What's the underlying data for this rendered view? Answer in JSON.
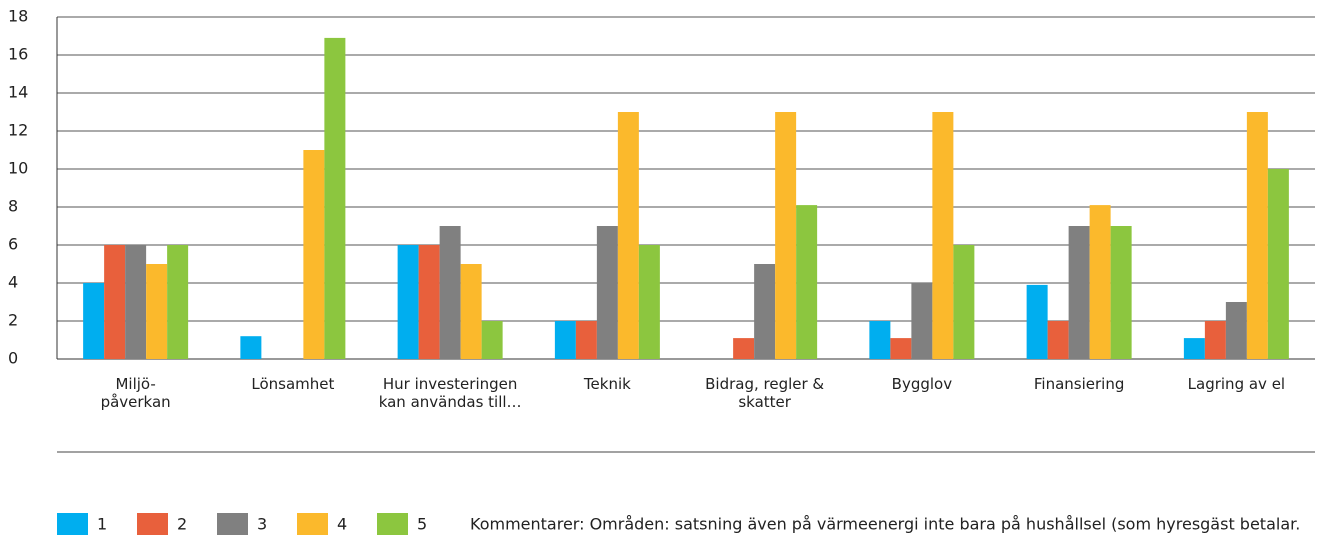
{
  "chart_data": {
    "type": "bar",
    "categories": [
      "Miljö-\npåverkan",
      "Lönsamhet",
      "Hur investeringen kan användas till…",
      "Teknik",
      "Bidrag, regler & skatter",
      "Bygglov",
      "Finansiering",
      "Lagring av el"
    ],
    "series": [
      {
        "name": "1",
        "color": "#00aeef",
        "values": [
          4,
          1.2,
          6,
          2,
          0,
          2,
          3.9,
          1.1
        ]
      },
      {
        "name": "2",
        "color": "#e8603c",
        "values": [
          6,
          0,
          6,
          2,
          1.1,
          1.1,
          2,
          2
        ]
      },
      {
        "name": "3",
        "color": "#808080",
        "values": [
          6,
          0,
          7,
          7,
          5,
          4,
          7,
          3
        ]
      },
      {
        "name": "4",
        "color": "#fbb92c",
        "values": [
          5,
          11,
          5,
          13,
          13,
          13,
          8.1,
          13
        ]
      },
      {
        "name": "5",
        "color": "#8cc63f",
        "values": [
          6,
          16.9,
          2,
          6,
          8.1,
          6,
          7,
          10
        ]
      }
    ],
    "ylim": [
      0,
      18
    ],
    "yticks": [
      0,
      2,
      4,
      6,
      8,
      10,
      12,
      14,
      16,
      18
    ],
    "grid": true,
    "annotation": "Kommentarer: Områden: satsning även på värmeenergi inte bara på hushållsel (som hyresgäst betalar."
  }
}
